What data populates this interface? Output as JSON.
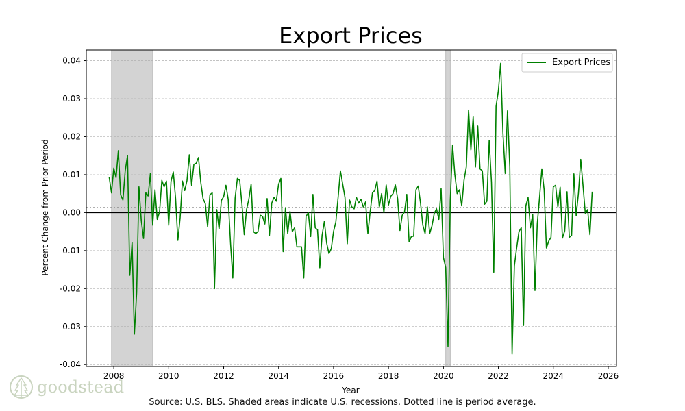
{
  "brand": {
    "name": "goodstead",
    "color": "#c9d4bf"
  },
  "source_note": "Source: U.S. BLS. Shaded areas indicate U.S. recessions. Dotted line is period average.",
  "chart_data": {
    "type": "line",
    "title": "Export Prices",
    "xlabel": "Year",
    "ylabel": "Percent Change from Prior Period",
    "xlim": [
      2007.0,
      2026.3
    ],
    "ylim": [
      -0.0405,
      0.0428
    ],
    "x_ticks": [
      2008,
      2010,
      2012,
      2014,
      2016,
      2018,
      2020,
      2022,
      2024,
      2026
    ],
    "y_ticks": [
      -0.04,
      -0.03,
      -0.02,
      -0.01,
      0.0,
      0.01,
      0.02,
      0.03,
      0.04
    ],
    "y_tick_labels": [
      "-0.04",
      "-0.03",
      "-0.02",
      "-0.01",
      "0.00",
      "0.01",
      "0.02",
      "0.03",
      "0.04"
    ],
    "grid": true,
    "legend": {
      "position": "top-right",
      "entries": [
        "Export Prices"
      ]
    },
    "period_average": 0.0013,
    "zero_line": 0.0,
    "recessions": [
      {
        "start": 2007.917,
        "end": 2009.417
      },
      {
        "start": 2020.083,
        "end": 2020.25
      }
    ],
    "series": [
      {
        "name": "Export Prices",
        "color": "#008000",
        "x_start": 2007.833,
        "x_step": 0.08333,
        "values": [
          0.0093,
          0.0052,
          0.0117,
          0.0092,
          0.0163,
          0.0047,
          0.0033,
          0.011,
          0.015,
          -0.0165,
          -0.0079,
          -0.032,
          -0.021,
          0.0068,
          -0.002,
          -0.0068,
          0.0052,
          0.0044,
          0.0103,
          -0.0033,
          0.006,
          -0.0018,
          0.0002,
          0.0085,
          0.0068,
          0.0083,
          -0.0033,
          0.0082,
          0.0107,
          0.0038,
          -0.0073,
          -0.0013,
          0.0083,
          0.0058,
          0.0085,
          0.0152,
          0.0072,
          0.0127,
          0.013,
          0.0145,
          0.008,
          0.0037,
          0.0023,
          -0.0037,
          0.0047,
          0.0052,
          -0.02,
          0.0008,
          -0.0043,
          0.0032,
          0.0042,
          0.0072,
          0.0035,
          -0.008,
          -0.0172,
          0.0038,
          0.009,
          0.0085,
          0.0022,
          -0.0058,
          0.0008,
          0.0035,
          0.0075,
          -0.005,
          -0.0055,
          -0.005,
          -0.0007,
          -0.001,
          -0.003,
          0.0037,
          -0.006,
          0.0025,
          0.004,
          0.003,
          0.0075,
          0.009,
          -0.0103,
          0.0013,
          -0.0055,
          0.0003,
          -0.005,
          -0.004,
          -0.009,
          -0.009,
          -0.009,
          -0.0172,
          -0.001,
          0.0,
          -0.0063,
          0.0048,
          -0.004,
          -0.0045,
          -0.0145,
          -0.006,
          -0.0023,
          -0.008,
          -0.0108,
          -0.0095,
          -0.005,
          -0.0025,
          0.004,
          0.011,
          0.0075,
          0.004,
          -0.0082,
          0.0033,
          0.0015,
          0.001,
          0.004,
          0.0025,
          0.0035,
          0.0015,
          0.0028,
          -0.0055,
          0.0002,
          0.0052,
          0.0058,
          0.0083,
          0.0015,
          0.005,
          0.0,
          0.0073,
          0.002,
          0.0043,
          0.005,
          0.0073,
          0.0037,
          -0.0047,
          -0.0007,
          0.0002,
          0.0048,
          -0.0077,
          -0.0063,
          -0.0062,
          0.006,
          0.007,
          0.0025,
          -0.0033,
          -0.0055,
          0.0015,
          -0.0055,
          -0.0035,
          -0.0002,
          0.001,
          -0.0018,
          0.0063,
          -0.0118,
          -0.0145,
          -0.0352,
          0.0032,
          0.0178,
          0.01,
          0.005,
          0.006,
          0.0018,
          0.0085,
          0.012,
          0.027,
          0.0165,
          0.0252,
          0.012,
          0.0228,
          0.0115,
          0.011,
          0.0022,
          0.003,
          0.019,
          0.008,
          -0.0157,
          0.028,
          0.032,
          0.0393,
          0.021,
          0.0103,
          0.0268,
          0.012,
          -0.0372,
          -0.014,
          -0.0093,
          -0.005,
          -0.004,
          -0.0297,
          0.0018,
          0.004,
          -0.004,
          -0.0005,
          -0.0205,
          -0.003,
          0.004,
          0.0115,
          0.006,
          -0.0093,
          -0.0075,
          -0.0065,
          0.0068,
          0.0072,
          0.0015,
          0.0067,
          -0.0067,
          -0.0048,
          0.0055,
          -0.0065,
          -0.006,
          0.0102,
          -0.0008,
          0.0052,
          0.014,
          0.007,
          -0.0003,
          0.0008,
          -0.0058,
          0.0055
        ]
      }
    ]
  }
}
